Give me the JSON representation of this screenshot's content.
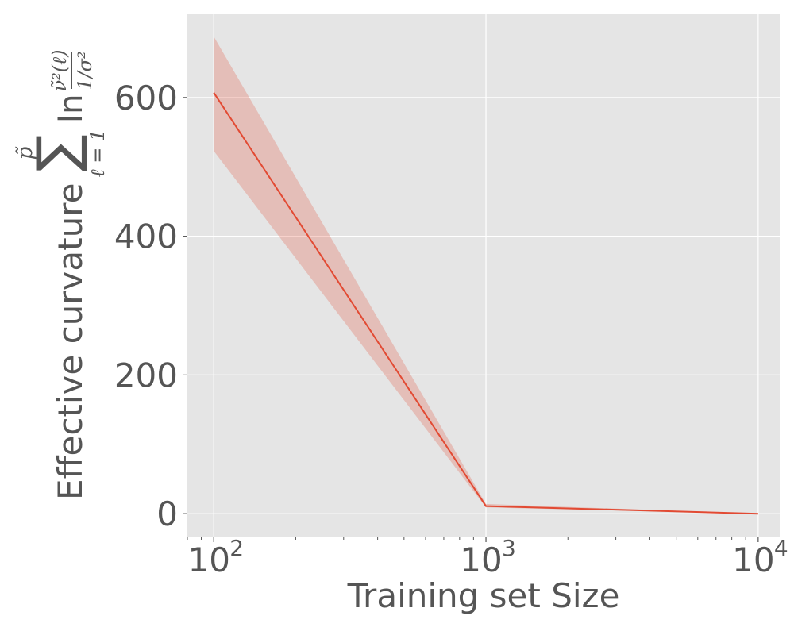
{
  "chart_data": {
    "type": "line",
    "x_scale": "log",
    "xlabel": "Training set Size",
    "ylabel": "Effective curvature",
    "ylabel_formula": {
      "sum_upper": "p̃",
      "sum_lower": "ℓ = 1",
      "ln": "ln",
      "numerator": "ν̃²(ℓ)",
      "denominator": "1/σ²"
    },
    "xlim": [
      80,
      12000
    ],
    "ylim": [
      -33,
      720
    ],
    "x_ticks": [
      {
        "value": 100,
        "label": "10",
        "exp": "2"
      },
      {
        "value": 1000,
        "label": "10",
        "exp": "3"
      },
      {
        "value": 10000,
        "label": "10",
        "exp": "4"
      }
    ],
    "y_ticks": [
      {
        "value": 0,
        "label": "0"
      },
      {
        "value": 200,
        "label": "200"
      },
      {
        "value": 400,
        "label": "400"
      },
      {
        "value": 600,
        "label": "600"
      }
    ],
    "grid": true,
    "background": "#E5E5E5",
    "grid_color": "#FFFFFF",
    "series": [
      {
        "x": [
          100,
          1000,
          10000
        ],
        "y": [
          607,
          11,
          0
        ],
        "lower": [
          523,
          9,
          0
        ],
        "upper": [
          688,
          14,
          0
        ],
        "color": "#E24A33",
        "band_color": "#E24A33",
        "band_opacity": 0.25
      }
    ]
  }
}
